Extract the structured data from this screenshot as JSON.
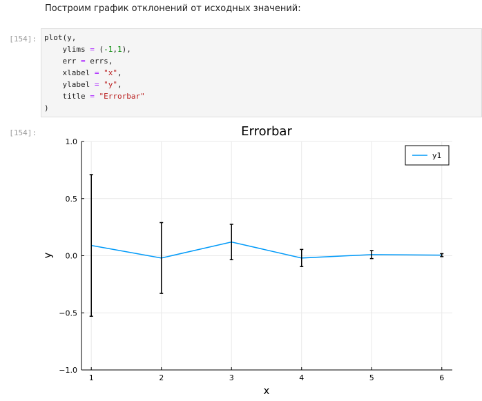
{
  "notebook": {
    "markdown_text": "Построим график отклонений от исходных значений:",
    "input_prompt": "[154]:",
    "output_prompt": "[154]:",
    "code_lines": [
      [
        {
          "t": "plot(y,",
          "c": ""
        }
      ],
      [
        {
          "t": "    ylims ",
          "c": ""
        },
        {
          "t": "=",
          "c": "op"
        },
        {
          "t": " (",
          "c": ""
        },
        {
          "t": "-1",
          "c": "num"
        },
        {
          "t": ",",
          "c": ""
        },
        {
          "t": "1",
          "c": "num"
        },
        {
          "t": "),",
          "c": ""
        }
      ],
      [
        {
          "t": "    err ",
          "c": ""
        },
        {
          "t": "=",
          "c": "op"
        },
        {
          "t": " errs,",
          "c": ""
        }
      ],
      [
        {
          "t": "    xlabel ",
          "c": ""
        },
        {
          "t": "=",
          "c": "op"
        },
        {
          "t": " ",
          "c": ""
        },
        {
          "t": "\"x\"",
          "c": "str"
        },
        {
          "t": ",",
          "c": ""
        }
      ],
      [
        {
          "t": "    ylabel ",
          "c": ""
        },
        {
          "t": "=",
          "c": "op"
        },
        {
          "t": " ",
          "c": ""
        },
        {
          "t": "\"y\"",
          "c": "str"
        },
        {
          "t": ",",
          "c": ""
        }
      ],
      [
        {
          "t": "    title ",
          "c": ""
        },
        {
          "t": "=",
          "c": "op"
        },
        {
          "t": " ",
          "c": ""
        },
        {
          "t": "\"Errorbar\"",
          "c": "str"
        }
      ],
      [
        {
          "t": ")",
          "c": ""
        }
      ]
    ]
  },
  "chart_data": {
    "type": "line",
    "title": "Errorbar",
    "xlabel": "x",
    "ylabel": "y",
    "xlim": [
      0.86,
      6.15
    ],
    "ylim": [
      -1,
      1
    ],
    "x_ticks": [
      1,
      2,
      3,
      4,
      5,
      6
    ],
    "x_tick_labels": [
      "1",
      "2",
      "3",
      "4",
      "5",
      "6"
    ],
    "y_ticks": [
      -1.0,
      -0.5,
      0.0,
      0.5,
      1.0
    ],
    "y_tick_labels": [
      "−1.0",
      "−0.5",
      "0.0",
      "0.5",
      "1.0"
    ],
    "grid": true,
    "legend_position": "top-right",
    "series": [
      {
        "name": "y1",
        "color": "#009af9",
        "x": [
          1,
          2,
          3,
          4,
          5,
          6
        ],
        "y": [
          0.09,
          -0.02,
          0.12,
          -0.02,
          0.01,
          0.005
        ],
        "err": [
          0.62,
          0.31,
          0.155,
          0.075,
          0.035,
          0.013
        ]
      }
    ]
  }
}
